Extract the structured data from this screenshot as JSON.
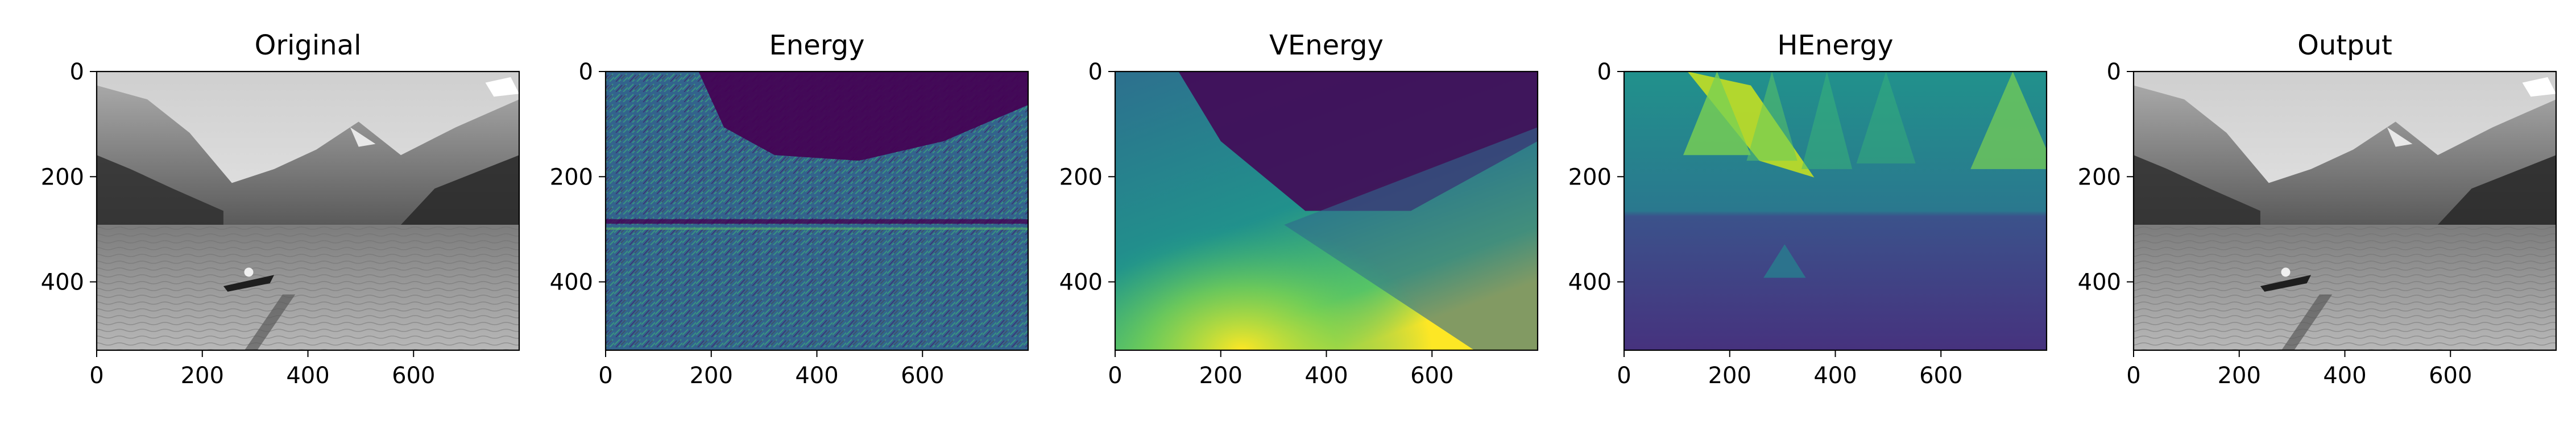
{
  "figure": {
    "panels": [
      {
        "title": "Original",
        "colormap": "gray",
        "content": "grayscale mountain lake photo with a boat"
      },
      {
        "title": "Energy",
        "colormap": "viridis",
        "content": "gradient energy map"
      },
      {
        "title": "VEnergy",
        "colormap": "viridis",
        "content": "vertical cumulative energy"
      },
      {
        "title": "HEnergy",
        "colormap": "viridis",
        "content": "horizontal cumulative energy"
      },
      {
        "title": "Output",
        "colormap": "gray",
        "content": "grayscale seam-carved output photo"
      }
    ]
  },
  "chart_data": [
    {
      "type": "heatmap",
      "title": "Original",
      "xlim": [
        0,
        800
      ],
      "ylim": [
        530,
        0
      ],
      "x_ticks": [
        "0",
        "200",
        "400",
        "600"
      ],
      "y_ticks": [
        "0",
        "200",
        "400"
      ],
      "grid": false,
      "colormap": "gray"
    },
    {
      "type": "heatmap",
      "title": "Energy",
      "xlim": [
        0,
        800
      ],
      "ylim": [
        530,
        0
      ],
      "x_ticks": [
        "0",
        "200",
        "400",
        "600"
      ],
      "y_ticks": [
        "0",
        "200",
        "400"
      ],
      "grid": false,
      "colormap": "viridis"
    },
    {
      "type": "heatmap",
      "title": "VEnergy",
      "xlim": [
        0,
        800
      ],
      "ylim": [
        530,
        0
      ],
      "x_ticks": [
        "0",
        "200",
        "400",
        "600"
      ],
      "y_ticks": [
        "0",
        "200",
        "400"
      ],
      "grid": false,
      "colormap": "viridis"
    },
    {
      "type": "heatmap",
      "title": "HEnergy",
      "xlim": [
        0,
        800
      ],
      "ylim": [
        530,
        0
      ],
      "x_ticks": [
        "0",
        "200",
        "400",
        "600"
      ],
      "y_ticks": [
        "0",
        "200",
        "400"
      ],
      "grid": false,
      "colormap": "viridis"
    },
    {
      "type": "heatmap",
      "title": "Output",
      "xlim": [
        0,
        800
      ],
      "ylim": [
        530,
        0
      ],
      "x_ticks": [
        "0",
        "200",
        "400",
        "600"
      ],
      "y_ticks": [
        "0",
        "200",
        "400"
      ],
      "grid": false,
      "colormap": "gray"
    }
  ]
}
